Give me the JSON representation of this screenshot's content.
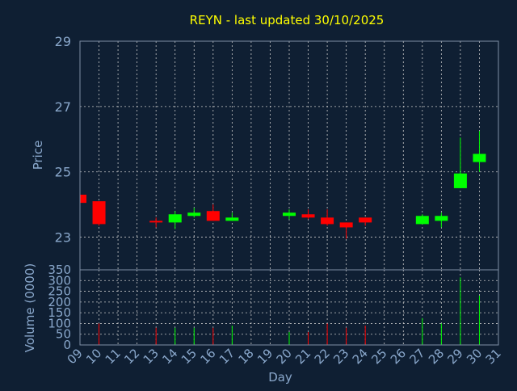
{
  "colors": {
    "background": "#0f1f33",
    "title": "#ffff00",
    "axis_text": "#8aa8cc",
    "frame": "#7f8fa6",
    "grid": "#c8c8c8",
    "up": "#00ff00",
    "down": "#ff0000"
  },
  "chart_data": [
    {
      "type": "candlestick",
      "title": "REYN - last updated 30/10/2025",
      "ylabel": "Price",
      "ylim": [
        22,
        29
      ],
      "yticks": [
        23,
        25,
        27,
        29
      ],
      "x_ticks": [
        "09",
        "10",
        "11",
        "12",
        "13",
        "14",
        "15",
        "16",
        "17",
        "18",
        "19",
        "20",
        "21",
        "22",
        "23",
        "24",
        "25",
        "26",
        "27",
        "28",
        "29",
        "30",
        "31"
      ],
      "grid": true,
      "candles": [
        {
          "day": "09",
          "open": 24.3,
          "high": 24.3,
          "low": 24.0,
          "close": 24.05
        },
        {
          "day": "10",
          "open": 24.1,
          "high": 24.1,
          "low": 23.35,
          "close": 23.4
        },
        {
          "day": "13",
          "open": 23.5,
          "high": 23.6,
          "low": 23.3,
          "close": 23.45
        },
        {
          "day": "14",
          "open": 23.45,
          "high": 23.8,
          "low": 23.25,
          "close": 23.7
        },
        {
          "day": "15",
          "open": 23.65,
          "high": 23.9,
          "low": 23.6,
          "close": 23.75
        },
        {
          "day": "16",
          "open": 23.8,
          "high": 24.0,
          "low": 23.5,
          "close": 23.5
        },
        {
          "day": "17",
          "open": 23.5,
          "high": 23.75,
          "low": 23.5,
          "close": 23.6
        },
        {
          "day": "20",
          "open": 23.65,
          "high": 23.85,
          "low": 23.55,
          "close": 23.75
        },
        {
          "day": "21",
          "open": 23.7,
          "high": 23.85,
          "low": 23.55,
          "close": 23.6
        },
        {
          "day": "22",
          "open": 23.6,
          "high": 23.85,
          "low": 23.35,
          "close": 23.4
        },
        {
          "day": "23",
          "open": 23.45,
          "high": 23.45,
          "low": 22.95,
          "close": 23.3
        },
        {
          "day": "24",
          "open": 23.6,
          "high": 23.6,
          "low": 23.35,
          "close": 23.45
        },
        {
          "day": "27",
          "open": 23.4,
          "high": 23.7,
          "low": 23.4,
          "close": 23.65
        },
        {
          "day": "28",
          "open": 23.5,
          "high": 23.75,
          "low": 23.3,
          "close": 23.65
        },
        {
          "day": "29",
          "open": 24.5,
          "high": 26.05,
          "low": 24.5,
          "close": 24.95
        },
        {
          "day": "30",
          "open": 25.3,
          "high": 26.25,
          "low": 25.0,
          "close": 25.55
        }
      ]
    },
    {
      "type": "bar",
      "ylabel": "Volume (0000)",
      "xlabel": "Day",
      "ylim": [
        0,
        350
      ],
      "yticks": [
        0,
        50,
        100,
        150,
        200,
        250,
        300,
        350
      ],
      "x_ticks": [
        "09",
        "10",
        "11",
        "12",
        "13",
        "14",
        "15",
        "16",
        "17",
        "18",
        "19",
        "20",
        "21",
        "22",
        "23",
        "24",
        "25",
        "26",
        "27",
        "28",
        "29",
        "30",
        "31"
      ],
      "grid": true,
      "bars": [
        {
          "day": "09",
          "value": 0,
          "direction": "down"
        },
        {
          "day": "10",
          "value": 100,
          "direction": "down"
        },
        {
          "day": "13",
          "value": 80,
          "direction": "down"
        },
        {
          "day": "14",
          "value": 80,
          "direction": "up"
        },
        {
          "day": "15",
          "value": 80,
          "direction": "up"
        },
        {
          "day": "16",
          "value": 80,
          "direction": "down"
        },
        {
          "day": "17",
          "value": 90,
          "direction": "up"
        },
        {
          "day": "20",
          "value": 60,
          "direction": "up"
        },
        {
          "day": "21",
          "value": 60,
          "direction": "down"
        },
        {
          "day": "22",
          "value": 100,
          "direction": "down"
        },
        {
          "day": "23",
          "value": 80,
          "direction": "down"
        },
        {
          "day": "24",
          "value": 90,
          "direction": "down"
        },
        {
          "day": "27",
          "value": 125,
          "direction": "up"
        },
        {
          "day": "28",
          "value": 100,
          "direction": "up"
        },
        {
          "day": "29",
          "value": 315,
          "direction": "up"
        },
        {
          "day": "30",
          "value": 230,
          "direction": "up"
        }
      ]
    }
  ]
}
